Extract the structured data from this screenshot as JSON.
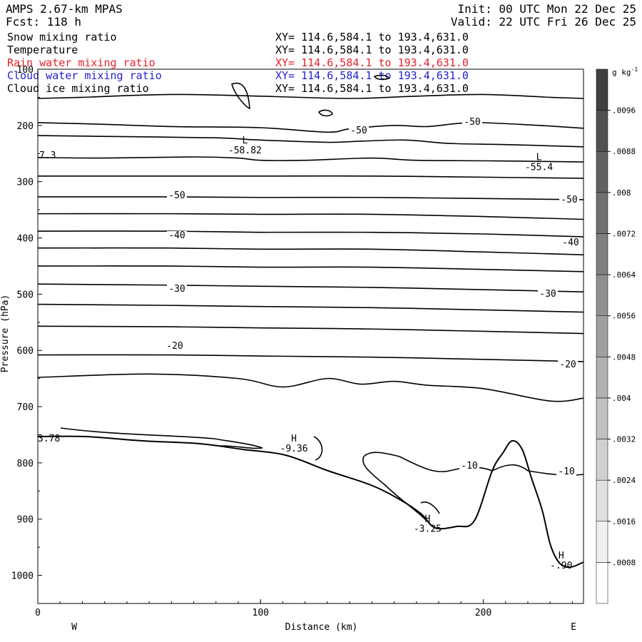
{
  "header": {
    "model": "AMPS 2.67-km MPAS",
    "forecast": "Fcst: 118 h",
    "init": "Init: 00 UTC Mon 22 Dec 25",
    "valid": "Valid: 22 UTC Fri 26 Dec 25"
  },
  "fields": [
    {
      "name": "Snow mixing ratio",
      "xy": "XY= 114.6,584.1 to 193.4,631.0",
      "color": "#000000"
    },
    {
      "name": "Temperature",
      "xy": "XY= 114.6,584.1 to 193.4,631.0",
      "color": "#000000"
    },
    {
      "name": "Rain water mixing ratio",
      "xy": "XY= 114.6,584.1 to 193.4,631.0",
      "color": "#e8202a"
    },
    {
      "name": "Cloud water mixing ratio",
      "xy": "XY= 114.6,584.1 to 193.4,631.0",
      "color": "#2222cc"
    },
    {
      "name": "Cloud ice mixing ratio",
      "xy": "XY= 114.6,584.1 to 193.4,631.0",
      "color": "#000000"
    }
  ],
  "chart_data": {
    "type": "contour",
    "xlabel": "Distance (km)",
    "ylabel": "Pressure (hPa)",
    "xlim": [
      0,
      245
    ],
    "ylim": [
      1050,
      100
    ],
    "x_ticks": [
      "0",
      "100",
      "200"
    ],
    "x_tick_values": [
      0,
      100,
      200
    ],
    "y_ticks": [
      "100",
      "200",
      "300",
      "400",
      "500",
      "600",
      "700",
      "800",
      "900",
      "1000"
    ],
    "y_tick_values": [
      100,
      200,
      300,
      400,
      500,
      600,
      700,
      800,
      900,
      1000
    ],
    "west_label": "W",
    "east_label": "E",
    "temperature_isotherms": [
      {
        "label": "-50",
        "points": [
          [
            0,
            152
          ],
          [
            20,
            150
          ],
          [
            60,
            145
          ],
          [
            100,
            148
          ],
          [
            140,
            152
          ],
          [
            170,
            148
          ],
          [
            200,
            145
          ],
          [
            230,
            150
          ],
          [
            245,
            152
          ]
        ]
      },
      {
        "label": "-50",
        "points": [
          [
            0,
            195
          ],
          [
            30,
            198
          ],
          [
            60,
            202
          ],
          [
            100,
            204
          ],
          [
            130,
            212
          ],
          [
            140,
            206
          ],
          [
            160,
            200
          ],
          [
            175,
            202
          ],
          [
            195,
            195
          ],
          [
            225,
            200
          ],
          [
            245,
            205
          ]
        ]
      },
      {
        "label": "-55",
        "points": [
          [
            0,
            218
          ],
          [
            40,
            220
          ],
          [
            80,
            222
          ],
          [
            100,
            226
          ],
          [
            130,
            230
          ],
          [
            145,
            228
          ],
          [
            165,
            226
          ],
          [
            185,
            232
          ],
          [
            210,
            234
          ],
          [
            245,
            238
          ]
        ]
      },
      {
        "label": "-50",
        "points": [
          [
            0,
            257
          ],
          [
            30,
            258
          ],
          [
            70,
            256
          ],
          [
            90,
            258
          ],
          [
            100,
            262
          ],
          [
            120,
            262
          ],
          [
            150,
            258
          ],
          [
            170,
            262
          ],
          [
            205,
            263
          ],
          [
            245,
            265
          ]
        ]
      },
      {
        "label": "",
        "points": [
          [
            0,
            290
          ],
          [
            60,
            290
          ],
          [
            100,
            290
          ],
          [
            150,
            290
          ],
          [
            200,
            292
          ],
          [
            245,
            294
          ]
        ]
      },
      {
        "label": "-50",
        "points": [
          [
            0,
            327
          ],
          [
            60,
            327
          ],
          [
            100,
            328
          ],
          [
            150,
            328
          ],
          [
            200,
            330
          ],
          [
            245,
            332
          ]
        ]
      },
      {
        "label": "",
        "points": [
          [
            0,
            357
          ],
          [
            60,
            357
          ],
          [
            100,
            358
          ],
          [
            150,
            358
          ],
          [
            200,
            362
          ],
          [
            245,
            367
          ]
        ]
      },
      {
        "label": "-40",
        "points": [
          [
            0,
            388
          ],
          [
            60,
            388
          ],
          [
            100,
            390
          ],
          [
            150,
            390
          ],
          [
            200,
            393
          ],
          [
            245,
            398
          ]
        ]
      },
      {
        "label": "",
        "points": [
          [
            0,
            418
          ],
          [
            60,
            418
          ],
          [
            100,
            420
          ],
          [
            150,
            420
          ],
          [
            200,
            425
          ],
          [
            245,
            430
          ]
        ]
      },
      {
        "label": "",
        "points": [
          [
            0,
            450
          ],
          [
            60,
            450
          ],
          [
            100,
            452
          ],
          [
            150,
            452
          ],
          [
            200,
            456
          ],
          [
            245,
            460
          ]
        ]
      },
      {
        "label": "-30",
        "points": [
          [
            0,
            482
          ],
          [
            60,
            484
          ],
          [
            100,
            486
          ],
          [
            150,
            488
          ],
          [
            200,
            492
          ],
          [
            245,
            496
          ]
        ]
      },
      {
        "label": "",
        "points": [
          [
            0,
            518
          ],
          [
            60,
            520
          ],
          [
            100,
            522
          ],
          [
            150,
            524
          ],
          [
            200,
            528
          ],
          [
            245,
            532
          ]
        ]
      },
      {
        "label": "-20",
        "points": [
          [
            0,
            557
          ],
          [
            60,
            558
          ],
          [
            100,
            560
          ],
          [
            150,
            562
          ],
          [
            200,
            566
          ],
          [
            245,
            570
          ]
        ]
      },
      {
        "label": "",
        "points": [
          [
            0,
            608
          ],
          [
            60,
            608
          ],
          [
            100,
            610
          ],
          [
            150,
            612
          ],
          [
            200,
            616
          ],
          [
            245,
            620
          ]
        ]
      },
      {
        "label": "",
        "points": [
          [
            0,
            648
          ],
          [
            50,
            642
          ],
          [
            90,
            650
          ],
          [
            110,
            665
          ],
          [
            130,
            650
          ],
          [
            145,
            660
          ],
          [
            160,
            655
          ],
          [
            175,
            662
          ],
          [
            200,
            668
          ],
          [
            230,
            690
          ],
          [
            245,
            685
          ]
        ]
      }
    ],
    "cold_center": {
      "label": "L",
      "value": "-58.82",
      "x": 93,
      "p": 232
    },
    "cold_center_2": {
      "label": "L",
      "value": "-55.4",
      "x": 225,
      "p": 262
    },
    "warm_center_1": {
      "label": "H",
      "value": "-9.36",
      "x": 115,
      "p": 762
    },
    "warm_center_2": {
      "label": "H",
      "value": "-3.25",
      "x": 175,
      "p": 905
    },
    "warm_center_3": {
      "label": "H",
      "value": "-.90",
      "x": 235,
      "p": 970
    },
    "left_edge_values": [
      "7.3",
      "3.78"
    ],
    "contour_labels": [
      "-50",
      "-50",
      "-50",
      "-50",
      "-40",
      "-40",
      "-30",
      "-30",
      "-20",
      "-20",
      "-10",
      "-10"
    ],
    "colorbar": {
      "unit": "g kg",
      "unit_sup": "-1",
      "levels": [
        ".0008",
        ".0016",
        ".0024",
        ".0032",
        ".004",
        ".0048",
        ".0056",
        ".0064",
        ".0072",
        ".008",
        ".0088",
        ".0096"
      ],
      "colors": [
        "#ffffff",
        "#f0f0f0",
        "#e0e0e0",
        "#d0d0d0",
        "#c0c0c0",
        "#b0b0b0",
        "#a0a0a0",
        "#909090",
        "#808080",
        "#707070",
        "#606060",
        "#505050",
        "#404040"
      ]
    }
  }
}
